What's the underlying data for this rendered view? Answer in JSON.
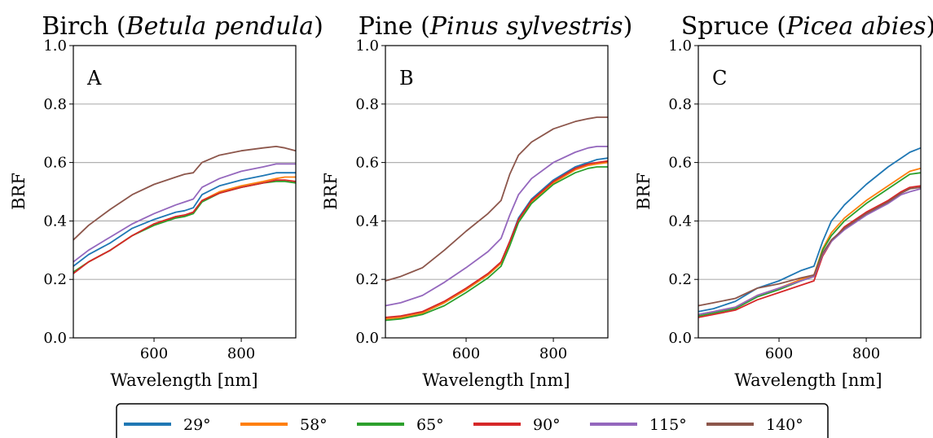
{
  "legend": [
    {
      "label": "29°",
      "color": "#1f77b4"
    },
    {
      "label": "58°",
      "color": "#ff7f0e"
    },
    {
      "label": "65°",
      "color": "#2ca02c"
    },
    {
      "label": "90°",
      "color": "#d62728"
    },
    {
      "label": "115°",
      "color": "#9467bd"
    },
    {
      "label": "140°",
      "color": "#8c564b"
    }
  ],
  "chart_data": [
    {
      "type": "line",
      "title": "Birch (Betula pendula)",
      "title_plain": "Birch (",
      "title_italic": "Betula pendula",
      "title_close": ")",
      "panel_label": "A",
      "xlabel": "Wavelength [nm]",
      "ylabel": "BRF",
      "xlim": [
        415,
        925
      ],
      "ylim": [
        0.0,
        1.0
      ],
      "xticks": [
        600,
        800
      ],
      "yticks": [
        0.0,
        0.2,
        0.4,
        0.6,
        0.8,
        1.0
      ],
      "ytick_labels": [
        "0.0",
        "0.2",
        "0.4",
        "0.6",
        "0.8",
        "1.0"
      ],
      "grid": "horizontal",
      "x": [
        415,
        450,
        500,
        550,
        600,
        650,
        670,
        690,
        710,
        750,
        800,
        850,
        880,
        900,
        925
      ],
      "series": [
        {
          "label": "29°",
          "values": [
            0.245,
            0.285,
            0.325,
            0.375,
            0.405,
            0.43,
            0.435,
            0.445,
            0.49,
            0.52,
            0.54,
            0.555,
            0.565,
            0.565,
            0.565
          ]
        },
        {
          "label": "58°",
          "values": [
            0.225,
            0.26,
            0.3,
            0.35,
            0.39,
            0.415,
            0.42,
            0.43,
            0.47,
            0.5,
            0.52,
            0.535,
            0.545,
            0.55,
            0.55
          ]
        },
        {
          "label": "65°",
          "values": [
            0.225,
            0.26,
            0.3,
            0.35,
            0.385,
            0.41,
            0.415,
            0.425,
            0.465,
            0.495,
            0.515,
            0.53,
            0.535,
            0.535,
            0.53
          ]
        },
        {
          "label": "90°",
          "values": [
            0.22,
            0.26,
            0.3,
            0.35,
            0.39,
            0.415,
            0.42,
            0.43,
            0.47,
            0.495,
            0.515,
            0.53,
            0.54,
            0.54,
            0.535
          ]
        },
        {
          "label": "115°",
          "values": [
            0.26,
            0.3,
            0.345,
            0.39,
            0.425,
            0.455,
            0.465,
            0.475,
            0.515,
            0.545,
            0.57,
            0.585,
            0.595,
            0.595,
            0.595
          ]
        },
        {
          "label": "140°",
          "values": [
            0.335,
            0.385,
            0.44,
            0.49,
            0.525,
            0.55,
            0.56,
            0.565,
            0.6,
            0.625,
            0.64,
            0.65,
            0.655,
            0.65,
            0.64
          ]
        }
      ]
    },
    {
      "type": "line",
      "title": "Pine (Pinus sylvestris)",
      "title_plain": "Pine (",
      "title_italic": "Pinus sylvestris",
      "title_close": ")",
      "panel_label": "B",
      "xlabel": "Wavelength [nm]",
      "ylabel": "BRF",
      "xlim": [
        415,
        925
      ],
      "ylim": [
        0.0,
        1.0
      ],
      "xticks": [
        600,
        800
      ],
      "yticks": [
        0.0,
        0.2,
        0.4,
        0.6,
        0.8,
        1.0
      ],
      "ytick_labels": [
        "0.0",
        "0.2",
        "0.4",
        "0.6",
        "0.8",
        "1.0"
      ],
      "grid": "horizontal",
      "x": [
        415,
        450,
        500,
        550,
        600,
        650,
        680,
        700,
        720,
        750,
        800,
        850,
        880,
        900,
        925
      ],
      "series": [
        {
          "label": "29°",
          "values": [
            0.065,
            0.07,
            0.085,
            0.12,
            0.165,
            0.215,
            0.26,
            0.33,
            0.41,
            0.475,
            0.54,
            0.585,
            0.6,
            0.61,
            0.615
          ]
        },
        {
          "label": "58°",
          "values": [
            0.065,
            0.07,
            0.085,
            0.12,
            0.165,
            0.215,
            0.255,
            0.325,
            0.4,
            0.465,
            0.53,
            0.575,
            0.59,
            0.595,
            0.6
          ]
        },
        {
          "label": "65°",
          "values": [
            0.06,
            0.065,
            0.08,
            0.11,
            0.155,
            0.205,
            0.245,
            0.315,
            0.395,
            0.46,
            0.525,
            0.565,
            0.58,
            0.585,
            0.585
          ]
        },
        {
          "label": "90°",
          "values": [
            0.07,
            0.075,
            0.09,
            0.125,
            0.17,
            0.22,
            0.26,
            0.33,
            0.405,
            0.47,
            0.535,
            0.58,
            0.595,
            0.6,
            0.605
          ]
        },
        {
          "label": "115°",
          "values": [
            0.11,
            0.12,
            0.145,
            0.19,
            0.24,
            0.295,
            0.34,
            0.42,
            0.49,
            0.545,
            0.6,
            0.635,
            0.65,
            0.655,
            0.655
          ]
        },
        {
          "label": "140°",
          "values": [
            0.195,
            0.21,
            0.24,
            0.3,
            0.365,
            0.425,
            0.47,
            0.56,
            0.625,
            0.67,
            0.715,
            0.74,
            0.75,
            0.755,
            0.755
          ]
        }
      ]
    },
    {
      "type": "line",
      "title": "Spruce (Picea abies)",
      "title_plain": "Spruce (",
      "title_italic": "Picea abies",
      "title_close": ")",
      "panel_label": "C",
      "xlabel": "Wavelength [nm]",
      "ylabel": "BRF",
      "xlim": [
        415,
        925
      ],
      "ylim": [
        0.0,
        1.0
      ],
      "xticks": [
        600,
        800
      ],
      "yticks": [
        0.0,
        0.2,
        0.4,
        0.6,
        0.8,
        1.0
      ],
      "ytick_labels": [
        "0.0",
        "0.2",
        "0.4",
        "0.6",
        "0.8",
        "1.0"
      ],
      "grid": "horizontal",
      "x": [
        415,
        450,
        500,
        550,
        600,
        650,
        680,
        700,
        720,
        750,
        800,
        850,
        880,
        900,
        925
      ],
      "series": [
        {
          "label": "29°",
          "values": [
            0.09,
            0.1,
            0.125,
            0.17,
            0.195,
            0.23,
            0.245,
            0.33,
            0.4,
            0.455,
            0.525,
            0.585,
            0.615,
            0.635,
            0.65
          ]
        },
        {
          "label": "58°",
          "values": [
            0.08,
            0.09,
            0.105,
            0.145,
            0.17,
            0.2,
            0.215,
            0.305,
            0.36,
            0.41,
            0.47,
            0.52,
            0.55,
            0.57,
            0.58
          ]
        },
        {
          "label": "65°",
          "values": [
            0.075,
            0.085,
            0.1,
            0.14,
            0.165,
            0.195,
            0.21,
            0.3,
            0.35,
            0.4,
            0.46,
            0.51,
            0.54,
            0.56,
            0.565
          ]
        },
        {
          "label": "90°",
          "values": [
            0.07,
            0.08,
            0.095,
            0.13,
            0.155,
            0.18,
            0.195,
            0.28,
            0.33,
            0.38,
            0.43,
            0.47,
            0.5,
            0.515,
            0.52
          ]
        },
        {
          "label": "115°",
          "values": [
            0.08,
            0.09,
            0.105,
            0.145,
            0.17,
            0.195,
            0.21,
            0.285,
            0.33,
            0.37,
            0.42,
            0.46,
            0.49,
            0.5,
            0.51
          ]
        },
        {
          "label": "140°",
          "values": [
            0.11,
            0.12,
            0.135,
            0.17,
            0.185,
            0.205,
            0.215,
            0.29,
            0.335,
            0.375,
            0.425,
            0.465,
            0.495,
            0.51,
            0.515
          ]
        }
      ]
    }
  ]
}
